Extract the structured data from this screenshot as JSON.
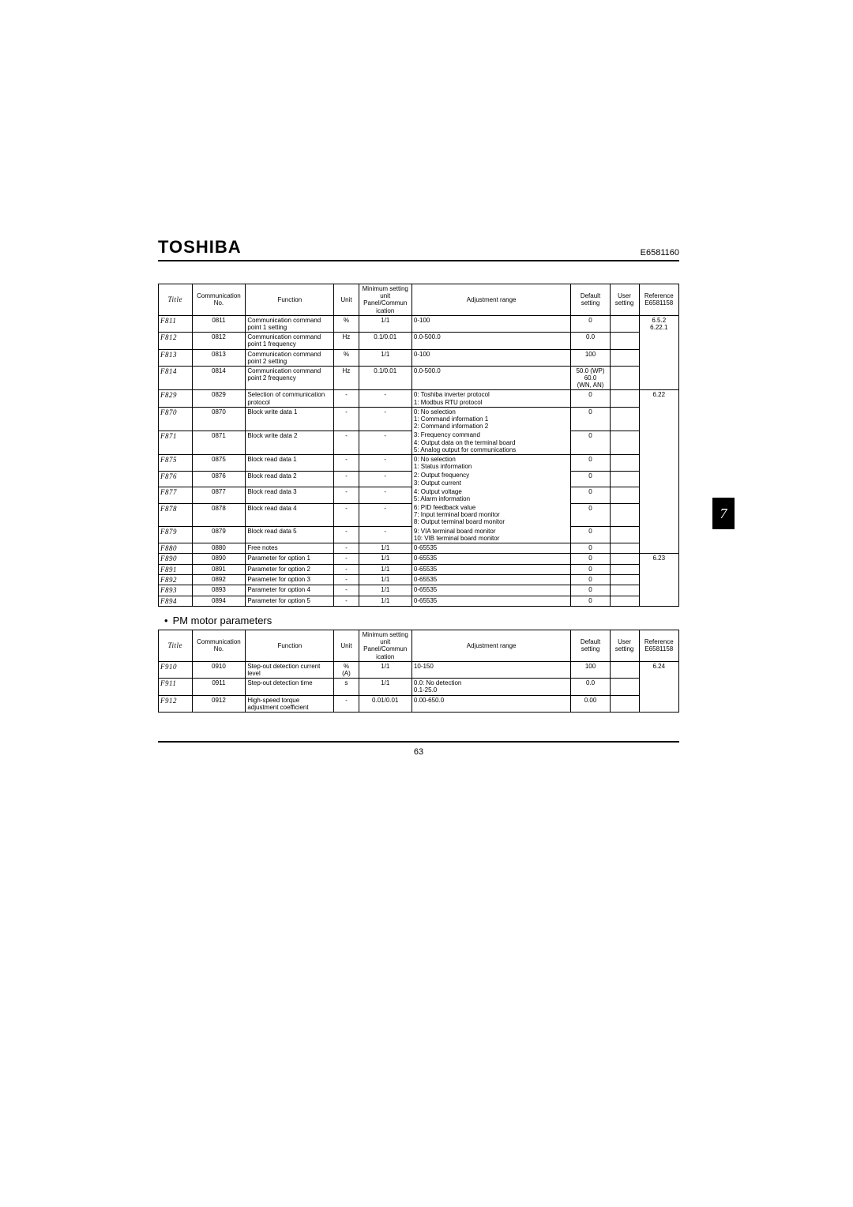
{
  "header": {
    "brand": "TOSHIBA",
    "docno": "E6581160"
  },
  "sideTab": "7",
  "pageNumber": "63",
  "table1": {
    "headers": {
      "title": "Title",
      "comm": "Communication No.",
      "func": "Function",
      "unit": "Unit",
      "min": "Minimum setting unit Panel/Commun ication",
      "adj": "Adjustment range",
      "def": "Default setting",
      "user": "User setting",
      "ref": "Reference E6581158"
    },
    "rows": [
      {
        "title": "F811",
        "comm": "0811",
        "func": "Communication command point 1 setting",
        "unit": "%",
        "min": "1/1",
        "adj": "0-100",
        "def": "0",
        "user": "",
        "ref": "6.5.2\n6.22.1",
        "refRowspan": 4
      },
      {
        "title": "F812",
        "comm": "0812",
        "func": "Communication command point 1 frequency",
        "unit": "Hz",
        "min": "0.1/0.01",
        "adj": "0.0-500.0",
        "def": "0.0",
        "user": ""
      },
      {
        "title": "F813",
        "comm": "0813",
        "func": "Communication command point 2 setting",
        "unit": "%",
        "min": "1/1",
        "adj": "0-100",
        "def": "100",
        "user": ""
      },
      {
        "title": "F814",
        "comm": "0814",
        "func": "Communication command point 2 frequency",
        "unit": "Hz",
        "min": "0.1/0.01",
        "adj": "0.0-500.0",
        "def": "50.0 (WP)\n60.0\n(WN, AN)",
        "user": ""
      },
      {
        "title": "F829",
        "comm": "0829",
        "func": "Selection of communication protocol",
        "unit": "-",
        "min": "-",
        "adj": "0: Toshiba inverter protocol\n1: Modbus RTU protocol",
        "def": "0",
        "user": "",
        "ref": "6.22",
        "refRowspan": 9
      },
      {
        "title": "F870",
        "comm": "0870",
        "func": "Block write data 1",
        "unit": "-",
        "min": "-",
        "adj": "0: No selection\n1: Command information 1\n2: Command information 2",
        "def": "0",
        "user": "",
        "adjRowspan": 2
      },
      {
        "title": "F871",
        "comm": "0871",
        "func": "Block write data 2",
        "unit": "-",
        "min": "-",
        "adjPart": "3: Frequency command\n4: Output data on the terminal board\n5: Analog output for communications",
        "def": "0",
        "user": ""
      },
      {
        "title": "F875",
        "comm": "0875",
        "func": "Block read data 1",
        "unit": "-",
        "min": "-",
        "adj": "0: No selection\n1: Status information",
        "def": "0",
        "user": "",
        "adjRowspan": 5
      },
      {
        "title": "F876",
        "comm": "0876",
        "func": "Block read data 2",
        "unit": "-",
        "min": "-",
        "adjPart": "2: Output frequency\n3: Output current",
        "def": "0",
        "user": ""
      },
      {
        "title": "F877",
        "comm": "0877",
        "func": "Block read data 3",
        "unit": "-",
        "min": "-",
        "adjPart": "4: Output voltage\n5: Alarm information",
        "def": "0",
        "user": ""
      },
      {
        "title": "F878",
        "comm": "0878",
        "func": "Block read data 4",
        "unit": "-",
        "min": "-",
        "adjPart": "6: PID feedback value\n7: Input terminal board monitor\n8: Output terminal board monitor",
        "def": "0",
        "user": ""
      },
      {
        "title": "F879",
        "comm": "0879",
        "func": "Block read data 5",
        "unit": "-",
        "min": "-",
        "adjPart": "9: VIA terminal board monitor\n10: VIB terminal board monitor",
        "def": "0",
        "user": ""
      },
      {
        "title": "F880",
        "comm": "0880",
        "func": "Free notes",
        "unit": "-",
        "min": "1/1",
        "adj": "0-65535",
        "def": "0",
        "user": ""
      },
      {
        "title": "F890",
        "comm": "0890",
        "func": "Parameter for option 1",
        "unit": "-",
        "min": "1/1",
        "adj": "0-65535",
        "def": "0",
        "user": "",
        "ref": "6.23",
        "refRowspan": 5
      },
      {
        "title": "F891",
        "comm": "0891",
        "func": "Parameter for option 2",
        "unit": "-",
        "min": "1/1",
        "adj": "0-65535",
        "def": "0",
        "user": ""
      },
      {
        "title": "F892",
        "comm": "0892",
        "func": "Parameter for option 3",
        "unit": "-",
        "min": "1/1",
        "adj": "0-65535",
        "def": "0",
        "user": ""
      },
      {
        "title": "F893",
        "comm": "0893",
        "func": "Parameter for option 4",
        "unit": "-",
        "min": "1/1",
        "adj": "0-65535",
        "def": "0",
        "user": ""
      },
      {
        "title": "F894",
        "comm": "0894",
        "func": "Parameter for option 5",
        "unit": "-",
        "min": "1/1",
        "adj": "0-65535",
        "def": "0",
        "user": ""
      }
    ]
  },
  "section2Title": "PM motor parameters",
  "table2": {
    "headers": {
      "title": "Title",
      "comm": "Communication No.",
      "func": "Function",
      "unit": "Unit",
      "min": "Minimum setting unit Panel/Commun ication",
      "adj": "Adjustment range",
      "def": "Default setting",
      "user": "User setting",
      "ref": "Reference E6581158"
    },
    "rows": [
      {
        "title": "F910",
        "comm": "0910",
        "func": "Step-out detection current level",
        "unit": "%\n(A)",
        "min": "1/1",
        "adj": "10-150",
        "def": "100",
        "user": "",
        "ref": "6.24",
        "refRowspan": 3
      },
      {
        "title": "F911",
        "comm": "0911",
        "func": "Step-out detection time",
        "unit": "s",
        "min": "1/1",
        "adj": "0.0: No detection\n0.1-25.0",
        "def": "0.0",
        "user": ""
      },
      {
        "title": "F912",
        "comm": "0912",
        "func": "High-speed torque adjustment coefficient",
        "unit": "-",
        "min": "0.01/0.01",
        "adj": "0.00-650.0",
        "def": "0.00",
        "user": ""
      }
    ]
  }
}
